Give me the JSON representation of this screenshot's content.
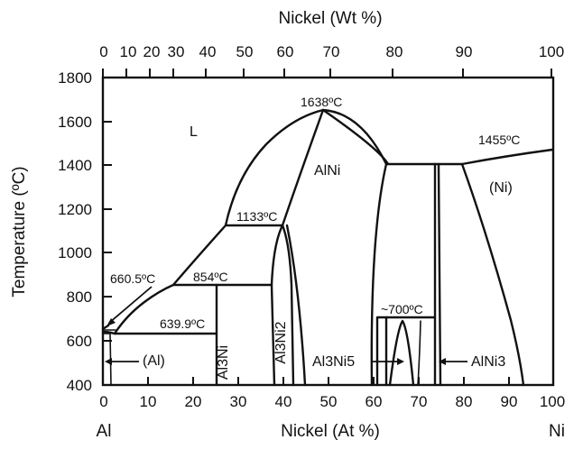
{
  "axes": {
    "top_title": "Nickel (Wt %)",
    "bottom_title": "Nickel (At %)",
    "left_title": "Temperature (ºC)",
    "bottom_ticks": [
      "0",
      "10",
      "20",
      "30",
      "40",
      "50",
      "60",
      "70",
      "80",
      "90",
      "100"
    ],
    "top_ticks": [
      "0",
      "10",
      "20",
      "30",
      "40",
      "50",
      "60",
      "70",
      "80",
      "90",
      "100"
    ],
    "y_ticks": [
      "400",
      "600",
      "800",
      "1000",
      "1200",
      "1400",
      "1600",
      "1800"
    ],
    "left_element": "Al",
    "right_element": "Ni"
  },
  "labels": {
    "liquid": "L",
    "alni": "AlNi",
    "ni_solid": "(Ni)",
    "al_solid": "(Al)",
    "al3ni": "Al3Ni",
    "al3ni2": "Al3Ni2",
    "al3ni5": "Al3Ni5",
    "alni3": "AlNi3",
    "t1638": "1638ºC",
    "t1455": "1455ºC",
    "t1133": "1133ºC",
    "t854": "854ºC",
    "t660": "660.5ºC",
    "t639": "639.9ºC",
    "t700": "~700ºC"
  },
  "colors": {
    "line": "#111111",
    "background": "#ffffff"
  }
}
